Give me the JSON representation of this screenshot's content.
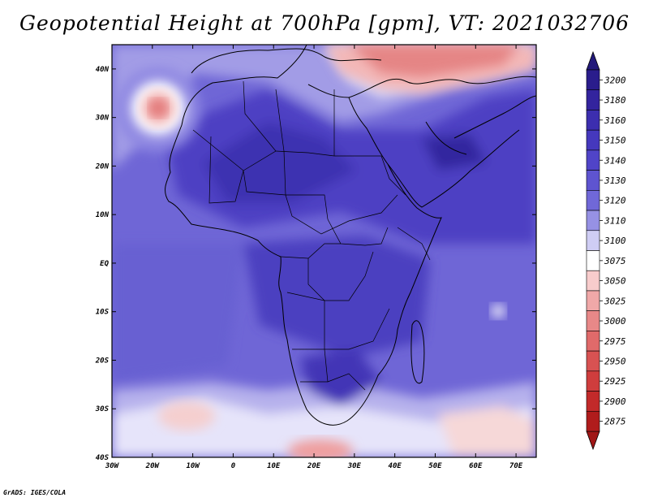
{
  "title": "Geopotential Height at 700hPa [gpm], VT: 2021032706",
  "credit": "GrADS: IGES/COLA",
  "map": {
    "lon_range": [
      -30,
      75
    ],
    "lat_range": [
      -40,
      45
    ],
    "lon_ticks": [
      {
        "value": -30,
        "label": "30W"
      },
      {
        "value": -20,
        "label": "20W"
      },
      {
        "value": -10,
        "label": "10W"
      },
      {
        "value": 0,
        "label": "0"
      },
      {
        "value": 10,
        "label": "10E"
      },
      {
        "value": 20,
        "label": "20E"
      },
      {
        "value": 30,
        "label": "30E"
      },
      {
        "value": 40,
        "label": "40E"
      },
      {
        "value": 50,
        "label": "50E"
      },
      {
        "value": 60,
        "label": "60E"
      },
      {
        "value": 70,
        "label": "70E"
      }
    ],
    "lat_ticks": [
      {
        "value": 40,
        "label": "40N"
      },
      {
        "value": 30,
        "label": "30N"
      },
      {
        "value": 20,
        "label": "20N"
      },
      {
        "value": 10,
        "label": "10N"
      },
      {
        "value": 0,
        "label": "EQ"
      },
      {
        "value": -10,
        "label": "10S"
      },
      {
        "value": -20,
        "label": "20S"
      },
      {
        "value": -30,
        "label": "30S"
      },
      {
        "value": -40,
        "label": "40S"
      }
    ]
  },
  "colorbar": {
    "levels": [
      {
        "label": "3200",
        "color": "#2a1d8c"
      },
      {
        "label": "3180",
        "color": "#33249e"
      },
      {
        "label": "3160",
        "color": "#3c2eaf"
      },
      {
        "label": "3150",
        "color": "#4538bd"
      },
      {
        "label": "3140",
        "color": "#5044c8"
      },
      {
        "label": "3130",
        "color": "#5e54d0"
      },
      {
        "label": "3120",
        "color": "#7068d8"
      },
      {
        "label": "3110",
        "color": "#9691e4"
      },
      {
        "label": "3100",
        "color": "#cfcdf4"
      },
      {
        "label": "3075",
        "color": "#ffffff"
      },
      {
        "label": "3050",
        "color": "#f8cccc"
      },
      {
        "label": "3025",
        "color": "#f0a8a8"
      },
      {
        "label": "3000",
        "color": "#e88888"
      },
      {
        "label": "2975",
        "color": "#e06a6a"
      },
      {
        "label": "2950",
        "color": "#d85252"
      },
      {
        "label": "2925",
        "color": "#cf3d3d"
      },
      {
        "label": "2900",
        "color": "#c22a2a"
      },
      {
        "label": "2875",
        "color": "#b01c1c"
      }
    ],
    "top_arrow_color": "#231a7a",
    "bottom_arrow_color": "#a01616"
  }
}
